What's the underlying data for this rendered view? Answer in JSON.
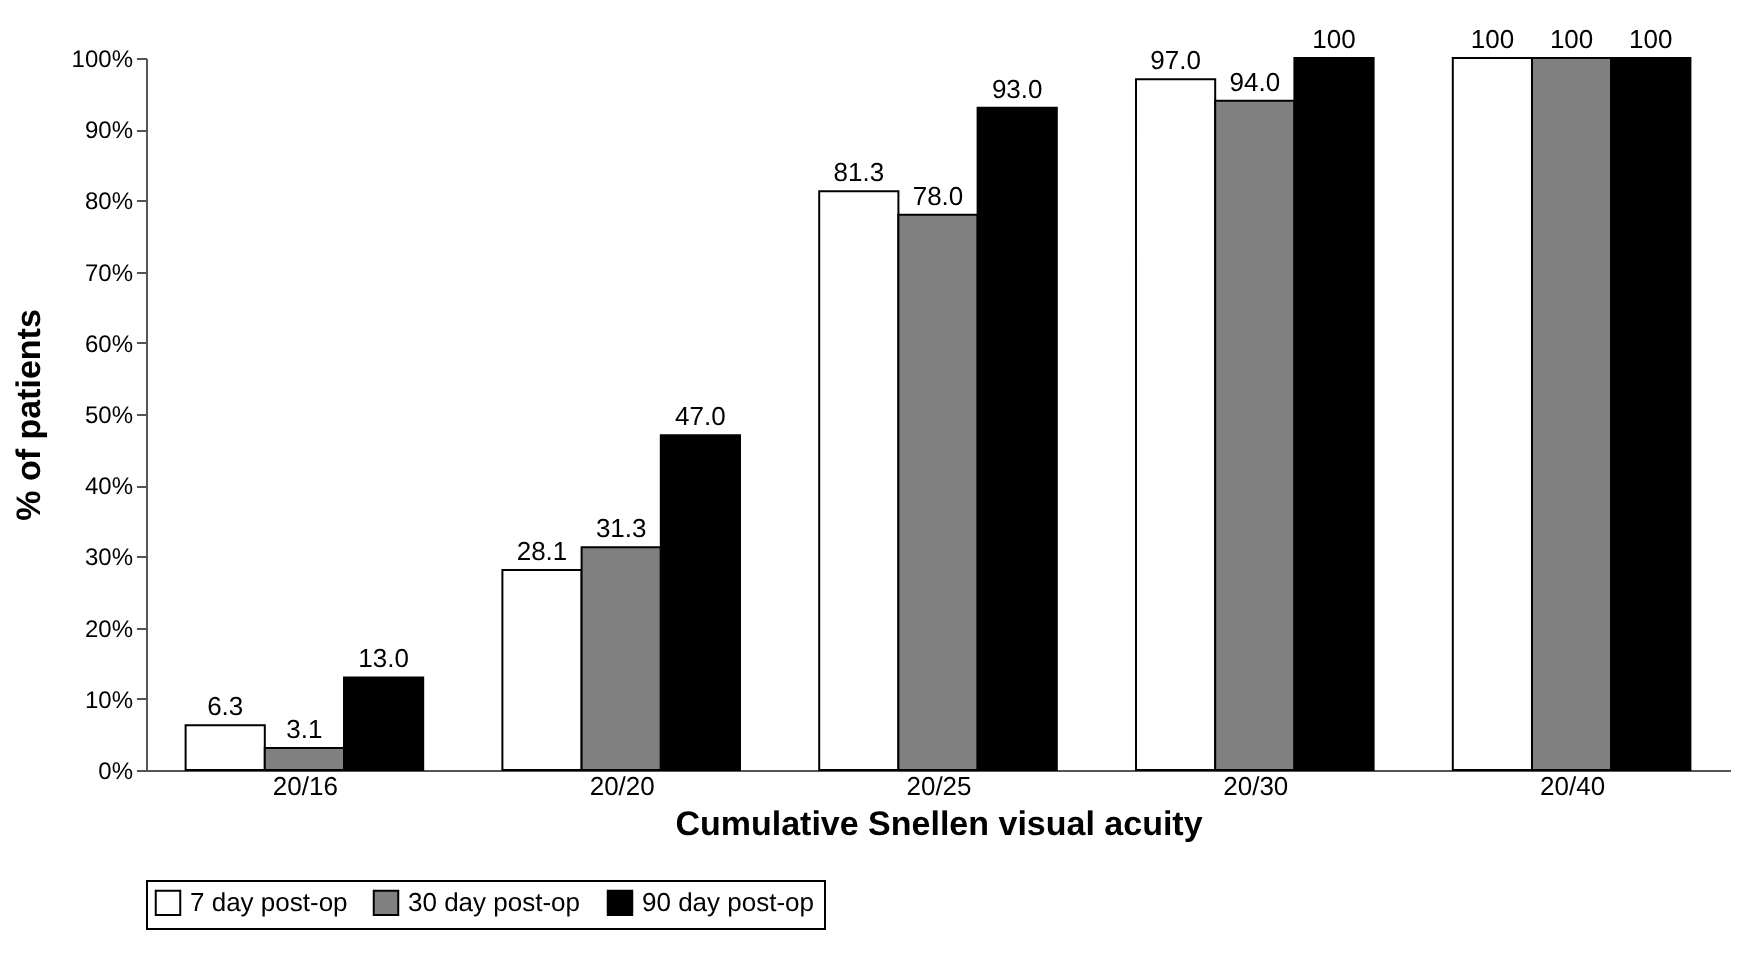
{
  "chart_data": {
    "type": "bar",
    "xlabel": "Cumulative Snellen visual acuity",
    "ylabel": "% of patients",
    "categories": [
      "20/16",
      "20/20",
      "20/25",
      "20/30",
      "20/40"
    ],
    "series": [
      {
        "name": "7 day post-op",
        "color": "#ffffff",
        "values": [
          6.3,
          28.1,
          81.3,
          97.0,
          100
        ],
        "value_labels": [
          "6.3",
          "28.1",
          "81.3",
          "97.0",
          "100"
        ]
      },
      {
        "name": "30 day post-op",
        "color": "#808080",
        "values": [
          3.1,
          31.3,
          78.0,
          94.0,
          100
        ],
        "value_labels": [
          "3.1",
          "31.3",
          "78.0",
          "94.0",
          "100"
        ]
      },
      {
        "name": "90 day post-op",
        "color": "#000000",
        "values": [
          13.0,
          47.0,
          93.0,
          100,
          100
        ],
        "value_labels": [
          "13.0",
          "47.0",
          "93.0",
          "100",
          "100"
        ]
      }
    ],
    "ylim": [
      0,
      100
    ],
    "yticks": [
      {
        "value": 0,
        "label": "0%"
      },
      {
        "value": 10,
        "label": "10%"
      },
      {
        "value": 20,
        "label": "20%"
      },
      {
        "value": 30,
        "label": "30%"
      },
      {
        "value": 40,
        "label": "40%"
      },
      {
        "value": 50,
        "label": "50%"
      },
      {
        "value": 60,
        "label": "60%"
      },
      {
        "value": 70,
        "label": "70%"
      },
      {
        "value": 80,
        "label": "80%"
      },
      {
        "value": 90,
        "label": "90%"
      },
      {
        "value": 100,
        "label": "100%"
      }
    ],
    "grid": false,
    "legend": "bottom"
  }
}
